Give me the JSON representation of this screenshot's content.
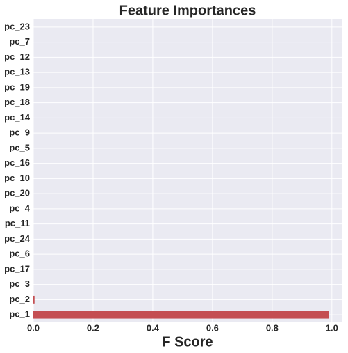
{
  "chart_data": {
    "type": "barh",
    "title": "Feature Importances",
    "x_label": "F Score",
    "categories": [
      "pc_1",
      "pc_2",
      "pc_3",
      "pc_17",
      "pc_6",
      "pc_24",
      "pc_11",
      "pc_4",
      "pc_20",
      "pc_10",
      "pc_16",
      "pc_5",
      "pc_9",
      "pc_14",
      "pc_18",
      "pc_19",
      "pc_13",
      "pc_12",
      "pc_7",
      "pc_23"
    ],
    "values": [
      0.99,
      0.004,
      0,
      0,
      0,
      0,
      0,
      0,
      0,
      0,
      0,
      0,
      0,
      0,
      0,
      0,
      0,
      0,
      0,
      0
    ],
    "color": "#c44e52",
    "xlim": [
      0,
      1.033
    ],
    "xticks": [
      {
        "value": 0,
        "label": "0.0"
      },
      0.2,
      0.4,
      0.6,
      0.8,
      {
        "value": 1,
        "label": "1.0"
      }
    ],
    "grid": true
  }
}
